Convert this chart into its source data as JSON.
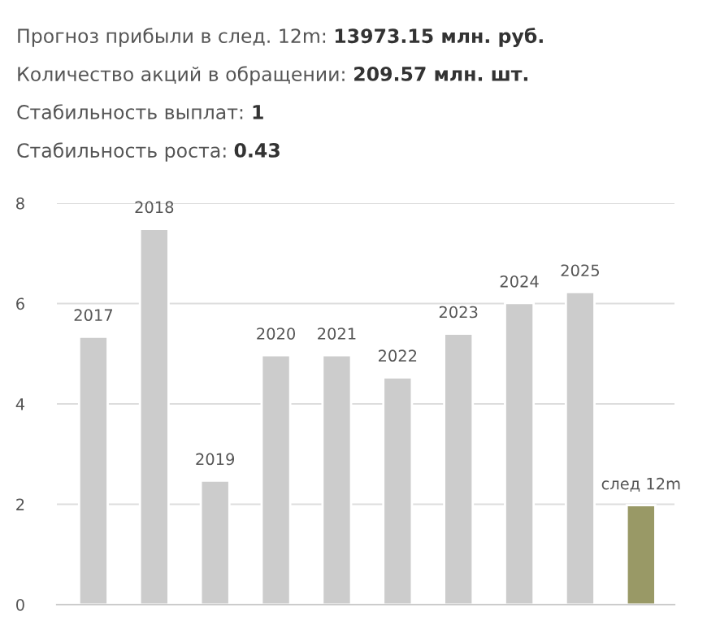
{
  "chart_data": {
    "type": "bar",
    "annotations": [
      "Прогноз прибыли в след. 12m: 13973.15 млн. руб.",
      "Количество акций в обращении: 209.57 млн. шт.",
      "Стабильность выплат: 1",
      "Стабильность роста: 0.43"
    ],
    "categories": [
      "2017",
      "2018",
      "2019",
      "2020",
      "2021",
      "2022",
      "2023",
      "2024",
      "2025",
      "след 12m"
    ],
    "values": [
      5.34,
      7.49,
      2.47,
      4.97,
      4.97,
      4.53,
      5.4,
      6.01,
      6.23,
      1.98
    ],
    "colors": [
      "#cccccc",
      "#cccccc",
      "#cccccc",
      "#cccccc",
      "#cccccc",
      "#cccccc",
      "#cccccc",
      "#cccccc",
      "#cccccc",
      "#999966"
    ],
    "ylim": [
      0,
      8
    ],
    "yticks": [
      0,
      2,
      4,
      6,
      8
    ],
    "grid": "y",
    "legend": false
  }
}
